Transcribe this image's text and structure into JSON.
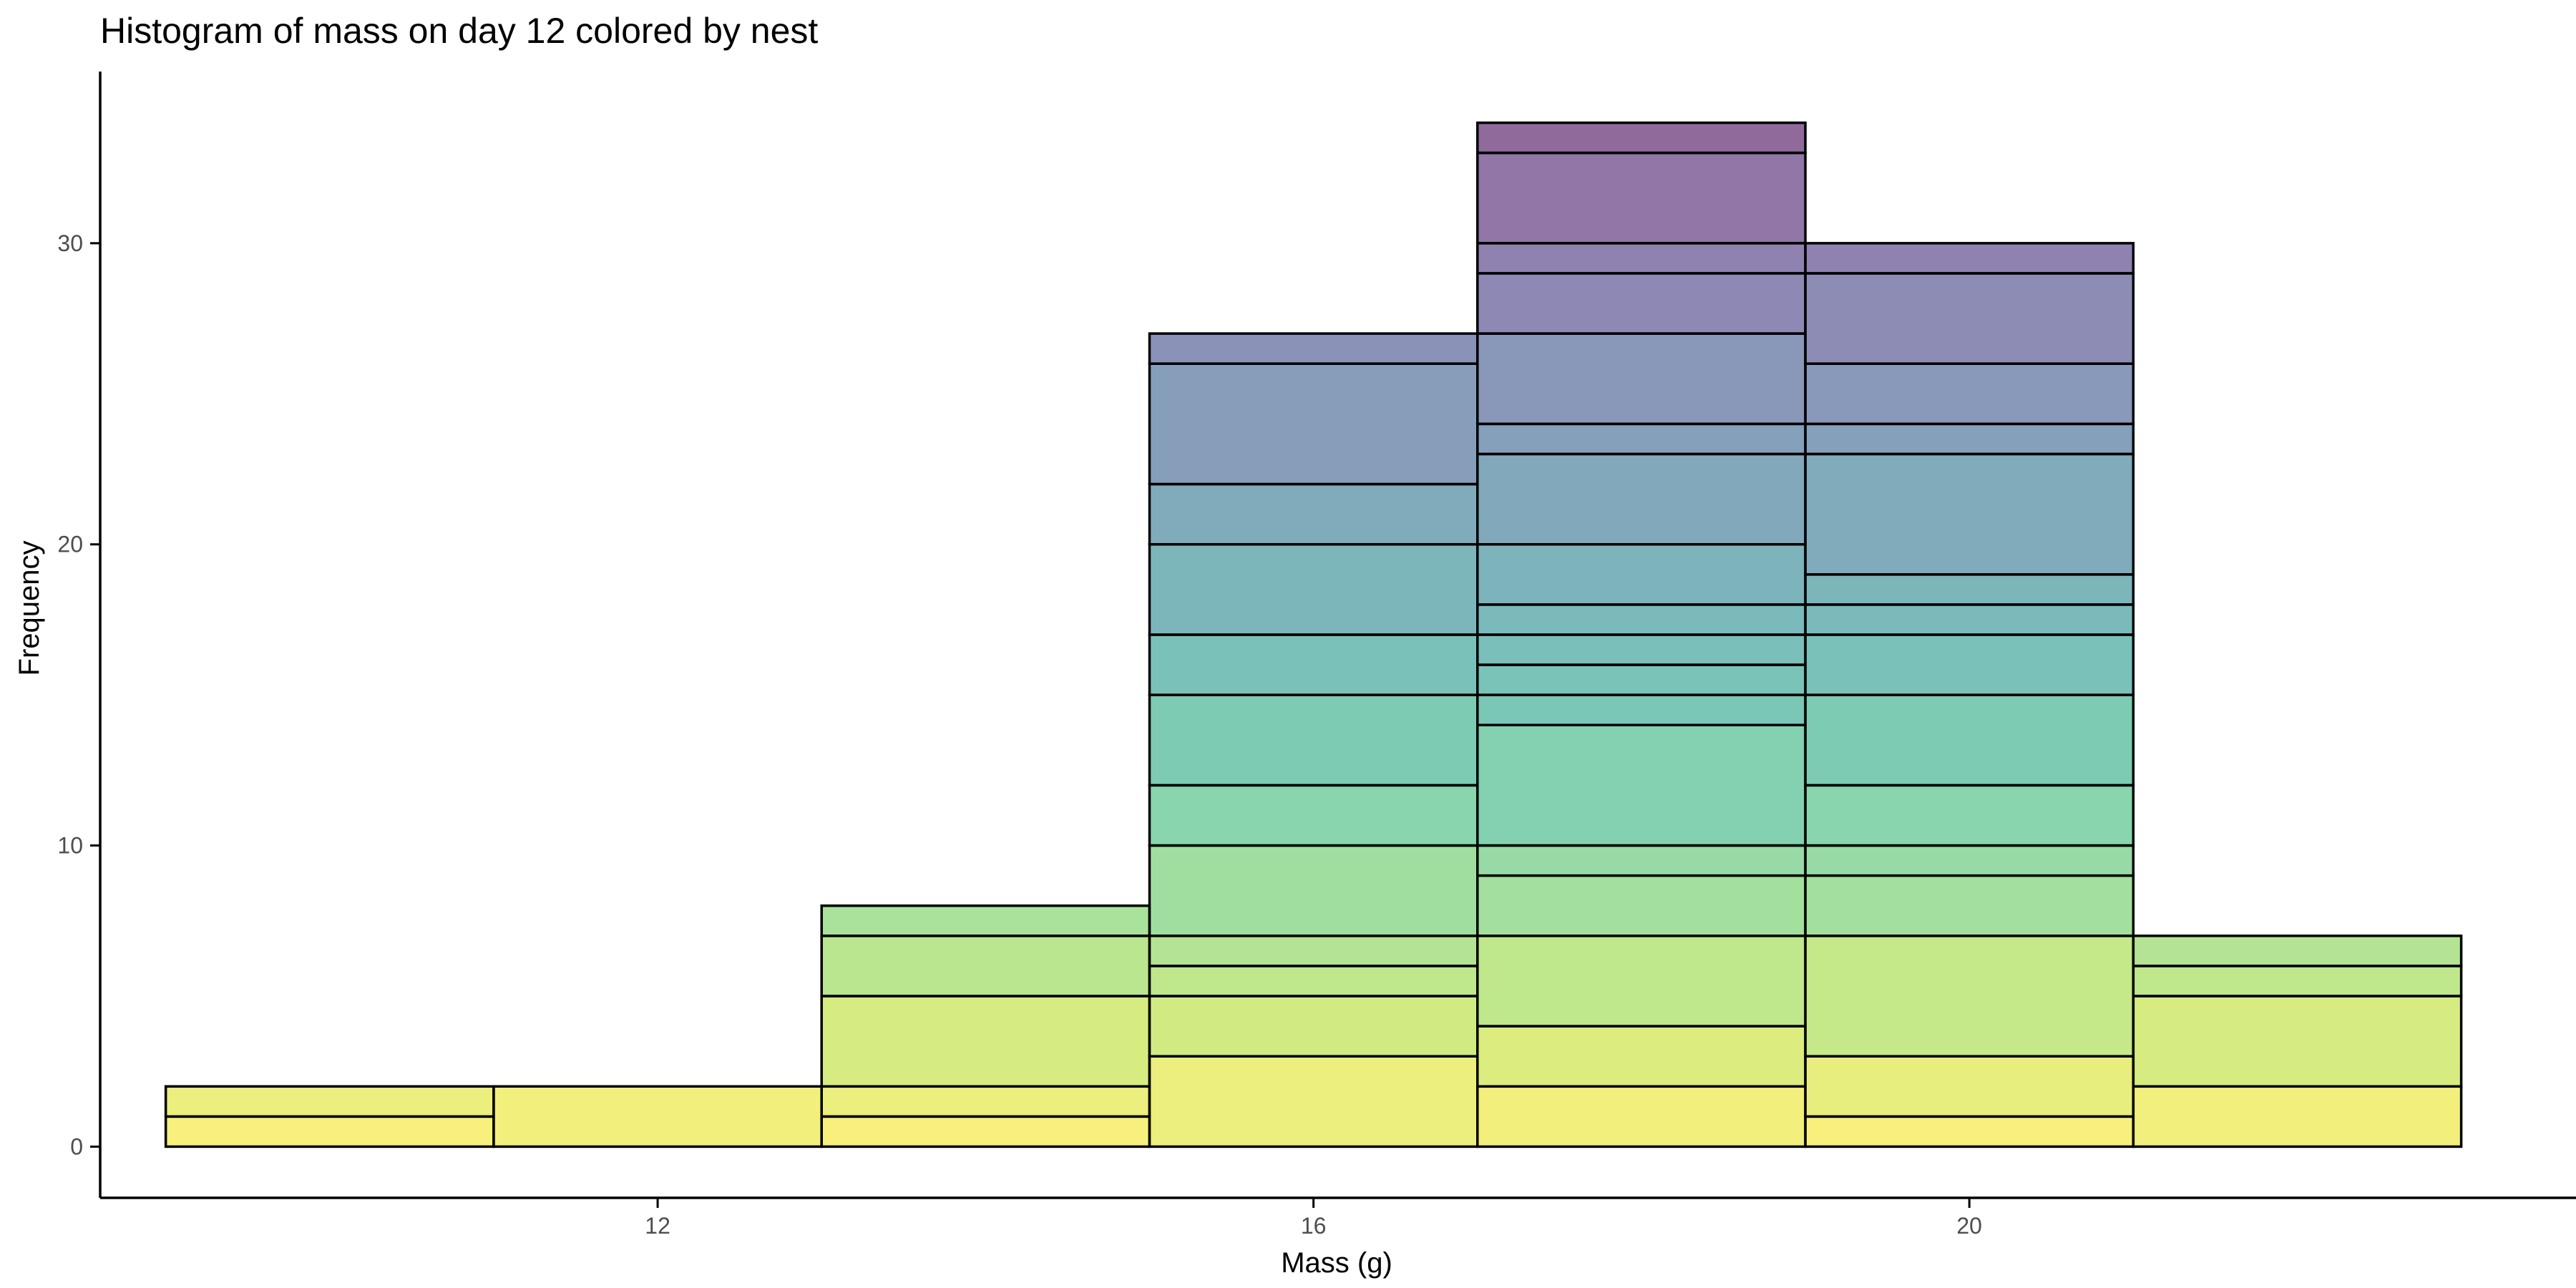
{
  "chart_data": {
    "type": "bar",
    "subtype": "stacked-histogram",
    "title": "Histogram of mass on day 12 colored by nest",
    "xlabel": "Mass (g)",
    "ylabel": "Frequency",
    "xlim": [
      8.6,
      23.7
    ],
    "ylim": [
      -1.7,
      35.7
    ],
    "x_ticks": [
      12,
      16,
      20
    ],
    "y_ticks": [
      0,
      10,
      20,
      30
    ],
    "grid": false,
    "legend": "none",
    "bin_width": 2,
    "bins": [
      {
        "x0": 9,
        "x1": 11,
        "stack": [
          1,
          2
        ]
      },
      {
        "x0": 11,
        "x1": 13,
        "stack": [
          2
        ]
      },
      {
        "x0": 13,
        "x1": 15,
        "stack": [
          1,
          2,
          5,
          7,
          8
        ]
      },
      {
        "x0": 15,
        "x1": 17,
        "stack": [
          3,
          5,
          6,
          7,
          10,
          12,
          15,
          17,
          20,
          22,
          26,
          27
        ]
      },
      {
        "x0": 17,
        "x1": 19,
        "stack": [
          2,
          4,
          7,
          9,
          10,
          14,
          15,
          16,
          17,
          18,
          20,
          23,
          24,
          27,
          29,
          30,
          33,
          34
        ]
      },
      {
        "x0": 19,
        "x1": 21,
        "stack": [
          1,
          3,
          7,
          9,
          10,
          12,
          15,
          17,
          18,
          19,
          23,
          24,
          26,
          29,
          30
        ]
      },
      {
        "x0": 21,
        "x1": 23,
        "stack": [
          2,
          5,
          6,
          7
        ]
      }
    ],
    "colors": {
      "fill_opacity": 0.6,
      "outline": "#000000",
      "palette": "viridis",
      "viridis_stops": [
        "#fde725",
        "#b5de2b",
        "#6ece58",
        "#35b779",
        "#1f9e89",
        "#26828e",
        "#31688e",
        "#3e4989",
        "#482878",
        "#440154"
      ]
    }
  }
}
